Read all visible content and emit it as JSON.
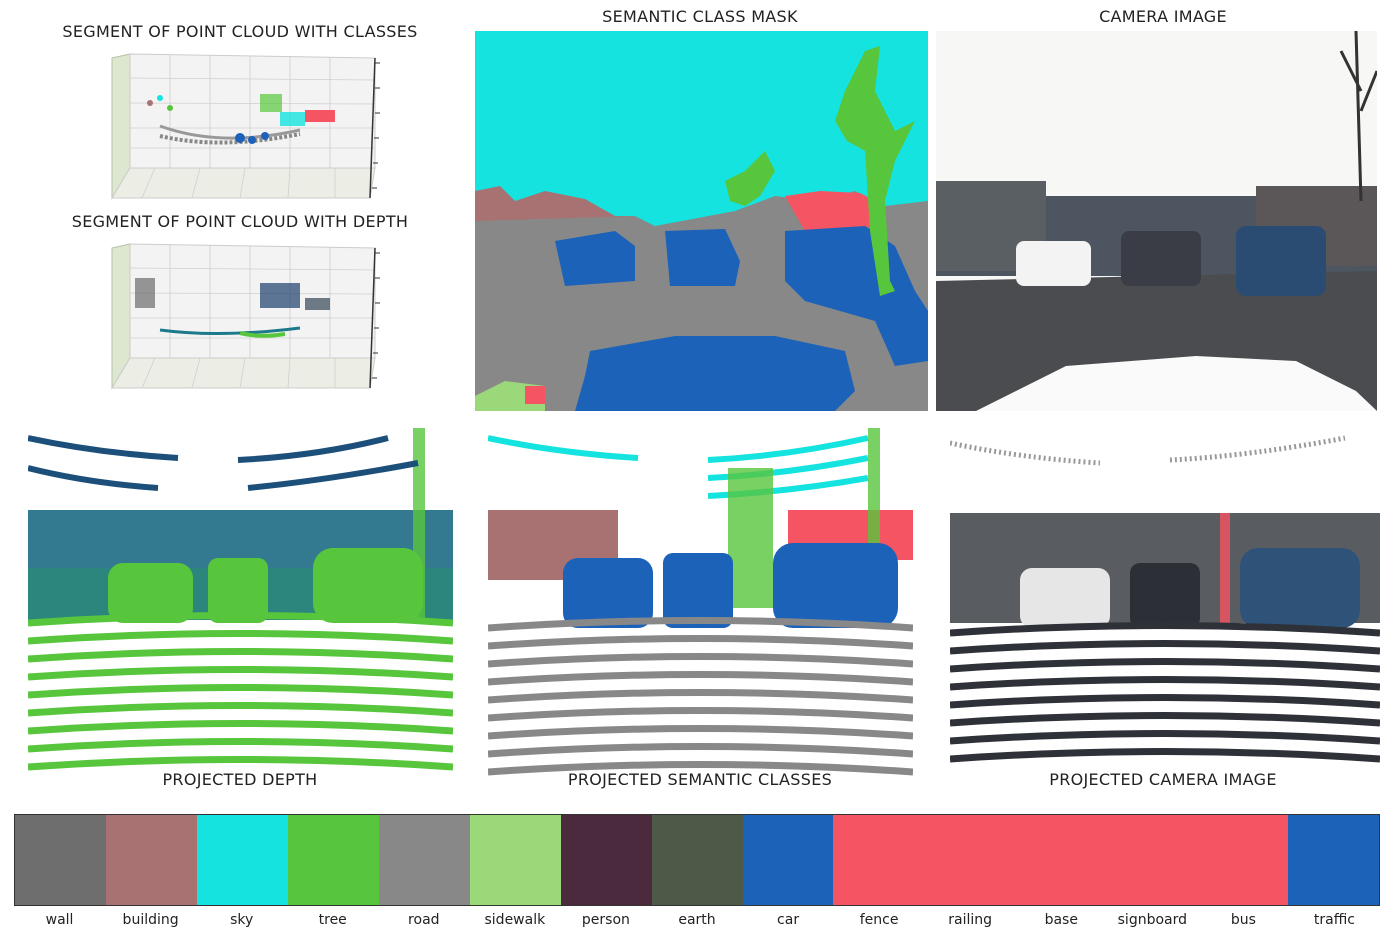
{
  "titles": {
    "pc_classes": "SEGMENT OF POINT CLOUD WITH CLASSES",
    "pc_depth": "SEGMENT OF POINT CLOUD WITH DEPTH",
    "mask": "SEMANTIC CLASS MASK",
    "camera": "CAMERA IMAGE",
    "proj_depth": "PROJECTED DEPTH",
    "proj_sem": "PROJECTED SEMANTIC CLASSES",
    "proj_cam": "PROJECTED CAMERA IMAGE"
  },
  "legend": [
    {
      "label": "wall",
      "color": "#6e6e6e"
    },
    {
      "label": "building",
      "color": "#a87272"
    },
    {
      "label": "sky",
      "color": "#15e3e0"
    },
    {
      "label": "tree",
      "color": "#58c63c"
    },
    {
      "label": "road",
      "color": "#888888"
    },
    {
      "label": "sidewalk",
      "color": "#9ad87a"
    },
    {
      "label": "person",
      "color": "#4a2a3c"
    },
    {
      "label": "earth",
      "color": "#4e5a48"
    },
    {
      "label": "car",
      "color": "#1c62b9"
    },
    {
      "label": "fence",
      "color": "#f55462"
    },
    {
      "label": "railing",
      "color": "#f55462"
    },
    {
      "label": "base",
      "color": "#f55462"
    },
    {
      "label": "signboard",
      "color": "#f55462"
    },
    {
      "label": "bus",
      "color": "#f55462"
    },
    {
      "label": "traffic",
      "color": "#1c62b9"
    }
  ],
  "legend_span": [
    1,
    1,
    1,
    1,
    1,
    1,
    1,
    1,
    1,
    5,
    0,
    0,
    0,
    0,
    1
  ]
}
